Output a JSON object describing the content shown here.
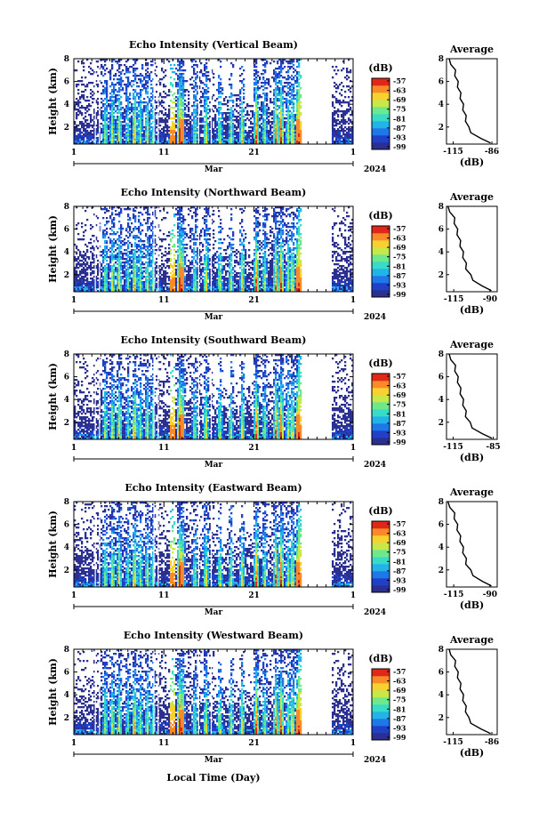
{
  "colormap": [
    "#2b2f8f",
    "#2040c8",
    "#1f78e8",
    "#22b4e8",
    "#38dcc6",
    "#6ee88a",
    "#c8e84a",
    "#f8d030",
    "#f88a28",
    "#e02818"
  ],
  "shared": {
    "ylabel": "Height (km)",
    "x_ticks": [
      "1",
      "11",
      "21",
      "1"
    ],
    "month_label": "Mar",
    "year_label": "2024",
    "bottom_xlabel": "Local Time (Day)",
    "colorbar_unit": "(dB)",
    "average_title": "Average",
    "average_xlabel": "(dB)"
  },
  "chart_data": [
    {
      "type": "heatmap",
      "title": "Echo Intensity (Vertical Beam)",
      "ylim": [
        0.5,
        8
      ],
      "y_ticks": [
        2,
        4,
        6,
        8
      ],
      "colorbar_ticks": [
        "-57",
        "-63",
        "-69",
        "-75",
        "-81",
        "-87",
        "-93",
        "-99"
      ],
      "profile": {
        "title": "Average",
        "x_ticks": [
          "-115",
          "-86"
        ],
        "xlim": [
          -120,
          -82
        ],
        "height": [
          0.6,
          1.0,
          1.5,
          2.0,
          2.5,
          3.0,
          3.5,
          4.0,
          4.5,
          5.0,
          5.5,
          6.0,
          6.5,
          7.0,
          7.5,
          8.0
        ],
        "value": [
          -87,
          -95,
          -101,
          -104,
          -105,
          -106,
          -107,
          -108,
          -109,
          -110,
          -111,
          -112,
          -113,
          -114,
          -116,
          -118
        ]
      }
    },
    {
      "type": "heatmap",
      "title": "Echo Intensity (Northward Beam)",
      "ylim": [
        0.5,
        8
      ],
      "y_ticks": [
        2,
        4,
        6,
        8
      ],
      "colorbar_ticks": [
        "-57",
        "-63",
        "-69",
        "-75",
        "-81",
        "-87",
        "-93",
        "-99"
      ],
      "profile": {
        "title": "Average",
        "x_ticks": [
          "-115",
          "-90"
        ],
        "xlim": [
          -120,
          -85
        ],
        "height": [
          0.6,
          1.0,
          1.5,
          2.0,
          2.5,
          3.0,
          3.5,
          4.0,
          4.5,
          5.0,
          5.5,
          6.0,
          6.5,
          7.0,
          7.5,
          8.0
        ],
        "value": [
          -89,
          -96,
          -101,
          -104,
          -106,
          -107,
          -108,
          -109,
          -110,
          -111,
          -112,
          -113,
          -114,
          -115,
          -117,
          -119
        ]
      }
    },
    {
      "type": "heatmap",
      "title": "Echo Intensity (Southward Beam)",
      "ylim": [
        0.5,
        8
      ],
      "y_ticks": [
        2,
        4,
        6,
        8
      ],
      "colorbar_ticks": [
        "-57",
        "-63",
        "-69",
        "-75",
        "-81",
        "-87",
        "-93",
        "-99"
      ],
      "profile": {
        "title": "Average",
        "x_ticks": [
          "-115",
          "-85"
        ],
        "xlim": [
          -120,
          -82
        ],
        "height": [
          0.6,
          1.0,
          1.5,
          2.0,
          2.5,
          3.0,
          3.5,
          4.0,
          4.5,
          5.0,
          5.5,
          6.0,
          6.5,
          7.0,
          7.5,
          8.0
        ],
        "value": [
          -86,
          -94,
          -100,
          -103,
          -105,
          -106,
          -107,
          -108,
          -109,
          -110,
          -111,
          -112,
          -113,
          -114,
          -116,
          -118
        ]
      }
    },
    {
      "type": "heatmap",
      "title": "Echo Intensity (Eastward Beam)",
      "ylim": [
        0.5,
        8
      ],
      "y_ticks": [
        2,
        4,
        6,
        8
      ],
      "colorbar_ticks": [
        "-57",
        "-63",
        "-69",
        "-75",
        "-81",
        "-87",
        "-93",
        "-99"
      ],
      "profile": {
        "title": "Average",
        "x_ticks": [
          "-115",
          "-90"
        ],
        "xlim": [
          -120,
          -85
        ],
        "height": [
          0.6,
          1.0,
          1.5,
          2.0,
          2.5,
          3.0,
          3.5,
          4.0,
          4.5,
          5.0,
          5.5,
          6.0,
          6.5,
          7.0,
          7.5,
          8.0
        ],
        "value": [
          -89,
          -96,
          -101,
          -104,
          -106,
          -107,
          -108,
          -109,
          -110,
          -111,
          -112,
          -113,
          -114,
          -115,
          -117,
          -119
        ]
      }
    },
    {
      "type": "heatmap",
      "title": "Echo Intensity (Westward Beam)",
      "ylim": [
        0.5,
        8
      ],
      "y_ticks": [
        2,
        4,
        6,
        8
      ],
      "colorbar_ticks": [
        "-57",
        "-63",
        "-69",
        "-75",
        "-81",
        "-87",
        "-93",
        "-99"
      ],
      "profile": {
        "title": "Average",
        "x_ticks": [
          "-115",
          "-86"
        ],
        "xlim": [
          -120,
          -82
        ],
        "height": [
          0.6,
          1.0,
          1.5,
          2.0,
          2.5,
          3.0,
          3.5,
          4.0,
          4.5,
          5.0,
          5.5,
          6.0,
          6.5,
          7.0,
          7.5,
          8.0
        ],
        "value": [
          -87,
          -95,
          -101,
          -104,
          -105,
          -106,
          -107,
          -108,
          -109,
          -110,
          -111,
          -112,
          -113,
          -114,
          -116,
          -118
        ]
      }
    }
  ]
}
